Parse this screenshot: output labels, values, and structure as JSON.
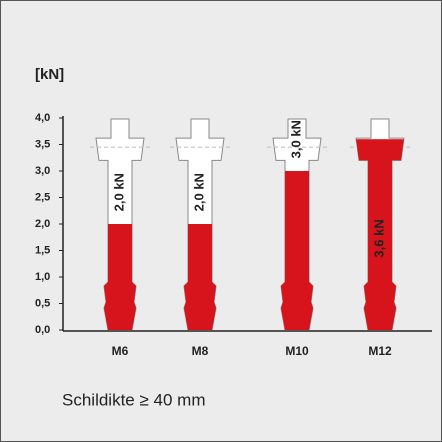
{
  "chart_data": {
    "type": "anchor-bar",
    "title": "[kN]",
    "categories": [
      "M6",
      "M8",
      "M10",
      "M12"
    ],
    "values": [
      2.0,
      2.0,
      3.0,
      3.6
    ],
    "value_labels": [
      "2,0 kN",
      "2,0 kN",
      "3,0 kN",
      "3,6 kN"
    ],
    "color": "#d7141c",
    "ylim": [
      0,
      4
    ],
    "yticks": [
      {
        "value": 0,
        "label": "0,0"
      },
      {
        "value": 0.5,
        "label": "0,5"
      },
      {
        "value": 1,
        "label": "1,0"
      },
      {
        "value": 1.5,
        "label": "1,5"
      },
      {
        "value": 2,
        "label": "2,0"
      },
      {
        "value": 2.5,
        "label": "2,5"
      },
      {
        "value": 3,
        "label": "3,0"
      },
      {
        "value": 3.5,
        "label": "3,5"
      },
      {
        "value": 4,
        "label": "4,0"
      }
    ],
    "footnote": "Schildikte ≥ 40 mm"
  }
}
